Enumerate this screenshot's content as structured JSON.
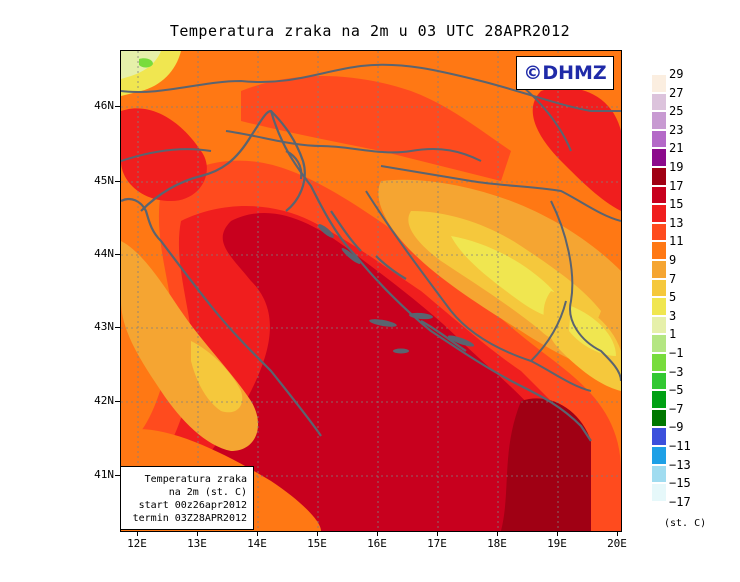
{
  "title": "Temperatura zraka na 2m u 03 UTC 28APR2012",
  "logo": "©DHMZ",
  "lat_labels": [
    "46N",
    "45N",
    "44N",
    "43N",
    "42N",
    "41N"
  ],
  "lon_labels": [
    "12E",
    "13E",
    "14E",
    "15E",
    "16E",
    "17E",
    "18E",
    "19E",
    "20E"
  ],
  "info_box": {
    "line1": "Temperatura zraka",
    "line2": "na 2m (st. C)",
    "line3": "start 00z26apr2012",
    "line4": "termin 03Z28APR2012"
  },
  "legend": {
    "levels": [
      "29",
      "27",
      "25",
      "23",
      "21",
      "19",
      "17",
      "15",
      "13",
      "11",
      "9",
      "7",
      "5",
      "3",
      "1",
      "−1",
      "−3",
      "−5",
      "−7",
      "−9",
      "−11",
      "−13",
      "−15",
      "−17"
    ],
    "colors": [
      "#fbeee0",
      "#dcc3dc",
      "#c89ad2",
      "#b469c8",
      "#8c0a8c",
      "#a00014",
      "#c8001e",
      "#f01e1e",
      "#ff4b1e",
      "#ff7814",
      "#f5a532",
      "#f5c83c",
      "#f0e650",
      "#e6f0aa",
      "#b4e682",
      "#78dc3c",
      "#32c832",
      "#00a014",
      "#007800",
      "#3c50dc",
      "#1ea0e6",
      "#a0dcf0",
      "#e6f8fa",
      "#ffffff"
    ],
    "unit": "(st. C)"
  }
}
